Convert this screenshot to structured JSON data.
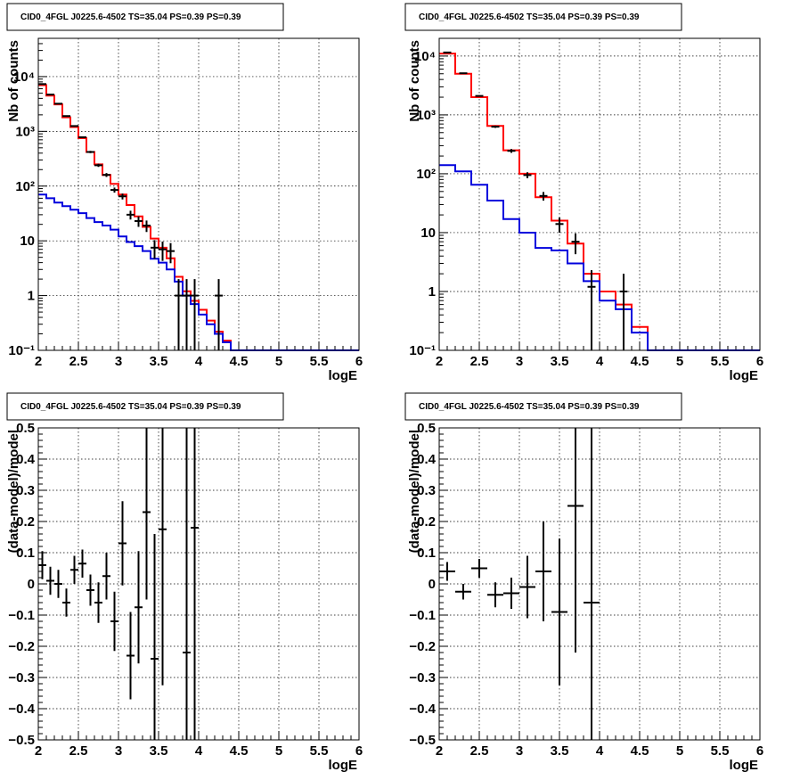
{
  "colors": {
    "data": "#000000",
    "total_model": "#ff0000",
    "source_model": "#0000dd"
  },
  "chart_data": [
    {
      "type": "line",
      "panel": "spectrum-left",
      "title": "CID0_4FGL J0225.6-4502 TS=35.04 PS=0.39 PS=0.39",
      "xlabel": "logE",
      "ylabel": "Nb of counts",
      "xlim": [
        2,
        6
      ],
      "ylim": [
        0.1,
        50000
      ],
      "ylog": true,
      "grid": true,
      "x_ticks": [
        "2",
        "2.5",
        "3",
        "3.5",
        "4",
        "4.5",
        "5",
        "5.5",
        "6"
      ],
      "y_ticks": [
        "10⁻¹",
        "1",
        "10",
        "10²",
        "10³",
        "10⁴"
      ],
      "bin_edges": [
        2.0,
        2.1,
        2.2,
        2.3,
        2.4,
        2.5,
        2.6,
        2.7,
        2.8,
        2.9,
        3.0,
        3.1,
        3.2,
        3.3,
        3.4,
        3.5,
        3.6,
        3.7,
        3.8,
        3.9,
        4.0,
        4.1,
        4.2,
        4.3,
        4.4,
        4.5,
        4.6,
        4.7,
        4.8,
        4.9,
        5.0,
        5.1,
        5.2,
        5.3,
        5.4,
        5.5,
        5.6,
        5.7,
        5.8,
        5.9,
        6.0
      ],
      "series": [
        {
          "role": "total_model",
          "values": [
            7000,
            4500,
            3100,
            1800,
            1200,
            750,
            420,
            250,
            160,
            110,
            70,
            45,
            28,
            18,
            11,
            7.5,
            4.8,
            2.2,
            1.2,
            0.8,
            0.55,
            0.35,
            0.22,
            0.15,
            0.1,
            0.1,
            0.1,
            0.1,
            0.1,
            0.1,
            0.1,
            0.1,
            0.1,
            0.1,
            0.1,
            0.1,
            0.1,
            0.1,
            0.1,
            0.1
          ]
        },
        {
          "role": "source_model",
          "values": [
            70,
            60,
            50,
            43,
            37,
            32,
            26,
            22,
            19,
            16,
            12,
            9.5,
            8,
            6.5,
            4.7,
            4,
            3,
            1.8,
            1,
            0.7,
            0.45,
            0.3,
            0.2,
            0.14,
            0.1,
            0.1,
            0.1,
            0.1,
            0.1,
            0.1,
            0.1,
            0.1,
            0.1,
            0.1,
            0.1,
            0.1,
            0.1,
            0.1,
            0.1,
            0.1
          ]
        },
        {
          "role": "data",
          "x": [
            2.05,
            2.15,
            2.25,
            2.35,
            2.45,
            2.55,
            2.65,
            2.75,
            2.85,
            2.95,
            3.05,
            3.15,
            3.25,
            3.35,
            3.45,
            3.55,
            3.65,
            3.75,
            3.85,
            3.95,
            4.25
          ],
          "y": [
            7300,
            4700,
            3200,
            1900,
            1250,
            780,
            420,
            240,
            160,
            85,
            65,
            30,
            23,
            19,
            7.5,
            7,
            6.5,
            1,
            1,
            1,
            1
          ],
          "err": [
            100,
            70,
            60,
            45,
            35,
            28,
            20,
            16,
            13,
            9,
            8,
            5.5,
            5,
            4.5,
            2.8,
            2.7,
            2.6,
            1,
            1,
            1,
            1
          ]
        }
      ]
    },
    {
      "type": "line",
      "panel": "spectrum-right",
      "title": "CID0_4FGL J0225.6-4502 TS=35.04 PS=0.39 PS=0.39",
      "xlabel": "logE",
      "ylabel": "Nb of counts",
      "xlim": [
        2,
        6
      ],
      "ylim": [
        0.1,
        20000
      ],
      "ylog": true,
      "grid": true,
      "x_ticks": [
        "2",
        "2.5",
        "3",
        "3.5",
        "4",
        "4.5",
        "5",
        "5.5",
        "6"
      ],
      "y_ticks": [
        "10⁻¹",
        "1",
        "10",
        "10²",
        "10³",
        "10⁴"
      ],
      "bin_edges": [
        2.0,
        2.2,
        2.4,
        2.6,
        2.8,
        3.0,
        3.2,
        3.4,
        3.6,
        3.8,
        4.0,
        4.2,
        4.4,
        4.6,
        4.8,
        5.0,
        5.2,
        5.4,
        5.6,
        5.8,
        6.0
      ],
      "series": [
        {
          "role": "total_model",
          "values": [
            11000,
            5000,
            2000,
            650,
            250,
            100,
            40,
            16,
            6.5,
            2,
            1,
            0.6,
            0.25,
            0.1,
            0.1,
            0.1,
            0.1,
            0.1,
            0.1,
            0.1
          ]
        },
        {
          "role": "source_model",
          "values": [
            140,
            110,
            65,
            35,
            17,
            10,
            5.5,
            5,
            3,
            1.5,
            0.7,
            0.5,
            0.2,
            0.1,
            0.1,
            0.1,
            0.1,
            0.1,
            0.1,
            0.1
          ]
        },
        {
          "role": "data",
          "x": [
            2.1,
            2.3,
            2.5,
            2.7,
            2.9,
            3.1,
            3.3,
            3.5,
            3.7,
            3.9,
            4.3
          ],
          "y": [
            11500,
            5100,
            2100,
            630,
            245,
            95,
            42,
            14,
            7,
            1.2,
            1
          ],
          "err": [
            120,
            80,
            50,
            28,
            18,
            11,
            7,
            4,
            2.7,
            1.1,
            1
          ]
        }
      ]
    },
    {
      "type": "scatter",
      "panel": "residual-left",
      "title": "CID0_4FGL J0225.6-4502 TS=35.04 PS=0.39 PS=0.39",
      "xlabel": "logE",
      "ylabel": "(data-model)/model",
      "xlim": [
        2,
        6
      ],
      "ylim": [
        -0.5,
        0.5
      ],
      "ylog": false,
      "grid": true,
      "x_ticks": [
        "2",
        "2.5",
        "3",
        "3.5",
        "4",
        "4.5",
        "5",
        "5.5",
        "6"
      ],
      "y_ticks": [
        "−0.5",
        "−0.4",
        "−0.3",
        "−0.2",
        "−0.1",
        "0",
        "0.1",
        "0.2",
        "0.3",
        "0.4",
        "0.5"
      ],
      "series": [
        {
          "role": "data",
          "xerr": 0.05,
          "x": [
            2.05,
            2.15,
            2.25,
            2.35,
            2.45,
            2.55,
            2.65,
            2.75,
            2.85,
            2.95,
            3.05,
            3.15,
            3.25,
            3.35,
            3.45,
            3.55,
            3.85,
            3.95
          ],
          "y": [
            0.06,
            0.01,
            0.0,
            -0.06,
            0.045,
            0.065,
            -0.02,
            -0.06,
            0.025,
            -0.12,
            0.13,
            -0.23,
            -0.075,
            0.23,
            -0.24,
            0.175,
            -0.22,
            0.18
          ],
          "err": [
            0.045,
            0.045,
            0.045,
            0.045,
            0.045,
            0.045,
            0.05,
            0.065,
            0.075,
            0.095,
            0.135,
            0.14,
            0.18,
            0.28,
            0.4,
            0.5,
            1.0,
            1.0
          ]
        }
      ]
    },
    {
      "type": "scatter",
      "panel": "residual-right",
      "title": "CID0_4FGL J0225.6-4502 TS=35.04 PS=0.39 PS=0.39",
      "xlabel": "logE",
      "ylabel": "(data-model)/model",
      "xlim": [
        2,
        6
      ],
      "ylim": [
        -0.5,
        0.5
      ],
      "ylog": false,
      "grid": true,
      "x_ticks": [
        "2",
        "2.5",
        "3",
        "3.5",
        "4",
        "4.5",
        "5",
        "5.5",
        "6"
      ],
      "y_ticks": [
        "−0.5",
        "−0.4",
        "−0.3",
        "−0.2",
        "−0.1",
        "0",
        "0.1",
        "0.2",
        "0.3",
        "0.4",
        "0.5"
      ],
      "series": [
        {
          "role": "data",
          "xerr": 0.1,
          "x": [
            2.1,
            2.3,
            2.5,
            2.7,
            2.9,
            3.1,
            3.3,
            3.5,
            3.7,
            3.9
          ],
          "y": [
            0.04,
            -0.025,
            0.05,
            -0.035,
            -0.03,
            -0.01,
            0.04,
            -0.09,
            0.25,
            -0.06
          ],
          "err": [
            0.03,
            0.025,
            0.03,
            0.04,
            0.05,
            0.1,
            0.16,
            0.235,
            0.47,
            0.85
          ]
        }
      ]
    }
  ]
}
